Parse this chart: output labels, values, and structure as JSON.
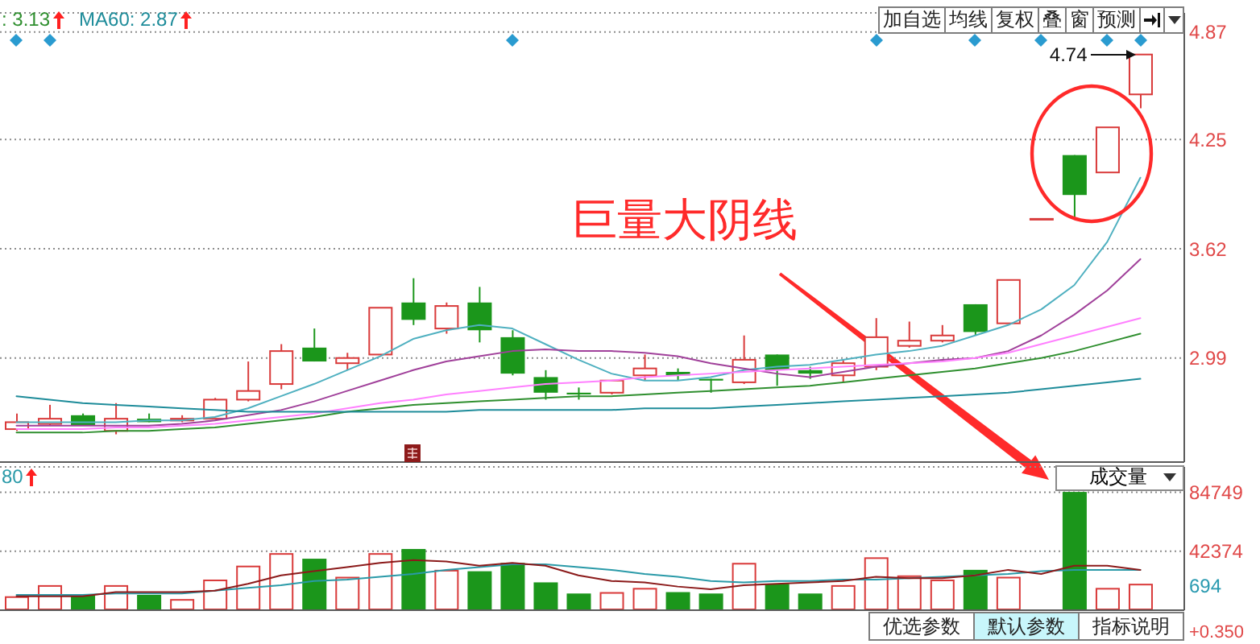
{
  "chart_data": [
    {
      "type": "candlestick",
      "categories": [
        null,
        null,
        null,
        null,
        null,
        null,
        null,
        null,
        null,
        null,
        null,
        null,
        null,
        null,
        null,
        null,
        null,
        null,
        null,
        null,
        null,
        null,
        null,
        null,
        null,
        null,
        null,
        null,
        null,
        null,
        null,
        null,
        null,
        null,
        null
      ],
      "ohlc": [
        [
          2.58,
          2.67,
          2.57,
          2.62
        ],
        [
          2.61,
          2.72,
          2.6,
          2.64
        ],
        [
          2.66,
          2.67,
          2.6,
          2.6
        ],
        [
          2.57,
          2.73,
          2.55,
          2.64
        ],
        [
          2.64,
          2.67,
          2.62,
          2.62
        ],
        [
          2.63,
          2.66,
          2.62,
          2.64
        ],
        [
          2.64,
          2.76,
          2.64,
          2.75
        ],
        [
          2.75,
          2.97,
          2.74,
          2.8
        ],
        [
          2.84,
          3.07,
          2.81,
          3.03
        ],
        [
          3.05,
          3.16,
          2.97,
          2.97
        ],
        [
          2.96,
          3.02,
          2.92,
          2.99
        ],
        [
          3.01,
          3.28,
          3.01,
          3.28
        ],
        [
          3.31,
          3.45,
          3.18,
          3.21
        ],
        [
          3.16,
          3.31,
          3.13,
          3.29
        ],
        [
          3.31,
          3.4,
          3.08,
          3.15
        ],
        [
          3.11,
          3.15,
          2.89,
          2.9
        ],
        [
          2.88,
          2.92,
          2.75,
          2.79
        ],
        [
          2.79,
          2.82,
          2.75,
          2.78
        ],
        [
          2.79,
          2.86,
          2.78,
          2.86
        ],
        [
          2.89,
          3.01,
          2.86,
          2.93
        ],
        [
          2.91,
          2.93,
          2.86,
          2.89
        ],
        [
          2.87,
          2.87,
          2.79,
          2.86
        ],
        [
          2.85,
          3.12,
          2.84,
          2.98
        ],
        [
          3.01,
          3.01,
          2.83,
          2.92
        ],
        [
          2.92,
          2.94,
          2.87,
          2.9
        ],
        [
          2.89,
          2.98,
          2.85,
          2.96
        ],
        [
          2.94,
          3.22,
          2.92,
          3.11
        ],
        [
          3.06,
          3.2,
          3.05,
          3.09
        ],
        [
          3.09,
          3.18,
          3.08,
          3.12
        ],
        [
          3.3,
          3.3,
          3.12,
          3.14
        ],
        [
          3.19,
          3.44,
          3.19,
          3.44
        ],
        [
          3.79,
          3.79,
          3.79,
          3.79
        ],
        [
          4.16,
          4.16,
          3.8,
          3.93
        ],
        [
          4.06,
          4.32,
          4.06,
          4.32
        ],
        [
          4.51,
          4.74,
          4.43,
          4.74
        ]
      ],
      "colors": [
        "#d93a3a",
        "#d93a3a",
        "#1b961b",
        "#d93a3a",
        "#1b961b",
        "#d93a3a",
        "#d93a3a",
        "#d93a3a",
        "#d93a3a",
        "#1b961b",
        "#d93a3a",
        "#d93a3a",
        "#1b961b",
        "#d93a3a",
        "#1b961b",
        "#1b961b",
        "#1b961b",
        "#1b961b",
        "#d93a3a",
        "#d93a3a",
        "#1b961b",
        "#1b961b",
        "#d93a3a",
        "#1b961b",
        "#1b961b",
        "#d93a3a",
        "#d93a3a",
        "#d93a3a",
        "#d93a3a",
        "#1b961b",
        "#d93a3a",
        "#d93a3a",
        "#1b961b",
        "#d93a3a",
        "#d93a3a"
      ],
      "series": [
        {
          "type": "line",
          "color": "#4fb0c0",
          "values": [
            2.62,
            2.62,
            2.62,
            2.62,
            2.63,
            2.63,
            2.65,
            2.7,
            2.77,
            2.84,
            2.92,
            3.0,
            3.1,
            3.15,
            3.18,
            3.16,
            3.07,
            2.98,
            2.9,
            2.86,
            2.86,
            2.88,
            2.92,
            2.94,
            2.95,
            2.98,
            3.01,
            3.03,
            3.06,
            3.12,
            3.18,
            3.27,
            3.41,
            3.66,
            4.03
          ]
        },
        {
          "type": "line",
          "color": "#a0409a",
          "values": [
            2.6,
            2.6,
            2.6,
            2.6,
            2.6,
            2.61,
            2.63,
            2.66,
            2.69,
            2.74,
            2.8,
            2.86,
            2.92,
            2.97,
            3.0,
            3.03,
            3.04,
            3.03,
            3.03,
            3.02,
            3.0,
            2.96,
            2.93,
            2.9,
            2.88,
            2.91,
            2.94,
            2.96,
            2.98,
            2.99,
            3.03,
            3.12,
            3.24,
            3.38,
            3.56
          ]
        },
        {
          "type": "line",
          "color": "#ff80ff",
          "values": [
            2.58,
            2.58,
            2.58,
            2.59,
            2.59,
            2.6,
            2.61,
            2.63,
            2.65,
            2.67,
            2.7,
            2.73,
            2.75,
            2.78,
            2.8,
            2.82,
            2.84,
            2.85,
            2.86,
            2.88,
            2.89,
            2.9,
            2.91,
            2.92,
            2.93,
            2.94,
            2.95,
            2.96,
            2.97,
            2.99,
            3.02,
            3.07,
            3.12,
            3.17,
            3.22
          ]
        },
        {
          "type": "line",
          "name": ": 3.13",
          "color": "#2f8f2f",
          "values": [
            2.56,
            2.56,
            2.56,
            2.57,
            2.57,
            2.58,
            2.59,
            2.61,
            2.63,
            2.65,
            2.68,
            2.7,
            2.72,
            2.73,
            2.74,
            2.75,
            2.76,
            2.77,
            2.77,
            2.78,
            2.79,
            2.8,
            2.81,
            2.82,
            2.83,
            2.85,
            2.87,
            2.89,
            2.91,
            2.93,
            2.96,
            2.99,
            3.03,
            3.08,
            3.13
          ]
        },
        {
          "type": "line",
          "name": "MA60: 2.87",
          "color": "#1e8c9a",
          "values": [
            2.77,
            2.75,
            2.73,
            2.72,
            2.71,
            2.7,
            2.69,
            2.68,
            2.68,
            2.68,
            2.68,
            2.68,
            2.68,
            2.68,
            2.69,
            2.69,
            2.69,
            2.69,
            2.69,
            2.7,
            2.7,
            2.7,
            2.71,
            2.72,
            2.73,
            2.74,
            2.75,
            2.76,
            2.77,
            2.78,
            2.79,
            2.81,
            2.83,
            2.85,
            2.87
          ]
        }
      ],
      "ylim": [
        2.39,
        4.98
      ],
      "yticks": [
        2.99,
        3.62,
        4.25,
        4.87
      ],
      "grid": "y",
      "tick_labels": "y",
      "legend": "top left",
      "annotations": [
        "巨量大阴线",
        "4.74",
        "加自选",
        "均线",
        "复权",
        "叠",
        "窗",
        "预测"
      ]
    },
    {
      "type": "bar",
      "title": "成交量",
      "categories": [
        null,
        null,
        null,
        null,
        null,
        null,
        null,
        null,
        null,
        null,
        null,
        null,
        null,
        null,
        null,
        null,
        null,
        null,
        null,
        null,
        null,
        null,
        null,
        null,
        null,
        null,
        null,
        null,
        null,
        null,
        null,
        null,
        null,
        null,
        null
      ],
      "series": [
        {
          "colors": [
            "#d93a3a",
            "#d93a3a",
            "#1b961b",
            "#d93a3a",
            "#1b961b",
            "#d93a3a",
            "#d93a3a",
            "#d93a3a",
            "#d93a3a",
            "#1b961b",
            "#d93a3a",
            "#d93a3a",
            "#1b961b",
            "#d93a3a",
            "#1b961b",
            "#1b961b",
            "#1b961b",
            "#1b961b",
            "#d93a3a",
            "#d93a3a",
            "#1b961b",
            "#1b961b",
            "#d93a3a",
            "#1b961b",
            "#1b961b",
            "#d93a3a",
            "#d93a3a",
            "#d93a3a",
            "#d93a3a",
            "#1b961b",
            "#d93a3a",
            null,
            "#1b961b",
            "#d93a3a",
            "#d93a3a"
          ],
          "values": [
            10000,
            18000,
            11000,
            18000,
            11000,
            8000,
            22000,
            32000,
            41000,
            37000,
            24000,
            41000,
            44000,
            29000,
            28000,
            34000,
            20000,
            12000,
            13000,
            16000,
            13000,
            12000,
            34000,
            19000,
            12000,
            18000,
            38000,
            25000,
            22000,
            29000,
            24000,
            null,
            85000,
            16000,
            19000
          ]
        },
        {
          "type": "line",
          "name": "80",
          "color": "#2a9aa8",
          "values": [
            11000,
            11000,
            11000,
            12000,
            12000,
            12000,
            14000,
            16000,
            18000,
            21000,
            22000,
            24000,
            26000,
            29000,
            31000,
            33000,
            33000,
            31000,
            29000,
            26000,
            24000,
            21000,
            20000,
            21000,
            21000,
            22000,
            22000,
            23000,
            24000,
            25000,
            26000,
            28000,
            29000,
            29000,
            29000
          ]
        },
        {
          "type": "line",
          "color": "#8b1a1a",
          "values": [
            10000,
            10000,
            10000,
            13000,
            13000,
            13000,
            14000,
            19000,
            25000,
            28000,
            31000,
            34000,
            36000,
            35000,
            32000,
            34000,
            32000,
            25000,
            21000,
            20000,
            17000,
            15000,
            18000,
            19000,
            20000,
            21000,
            24000,
            23000,
            23000,
            25000,
            29000,
            26000,
            32000,
            32000,
            29000
          ]
        }
      ],
      "ylim": [
        0,
        103000
      ],
      "yticks": [
        42374,
        84749
      ],
      "grid": "y",
      "tick_labels": "y",
      "legend": "top left",
      "annotations": [
        "694",
        "+0.350",
        "优选参数",
        "默认参数",
        "指标说明"
      ]
    }
  ]
}
